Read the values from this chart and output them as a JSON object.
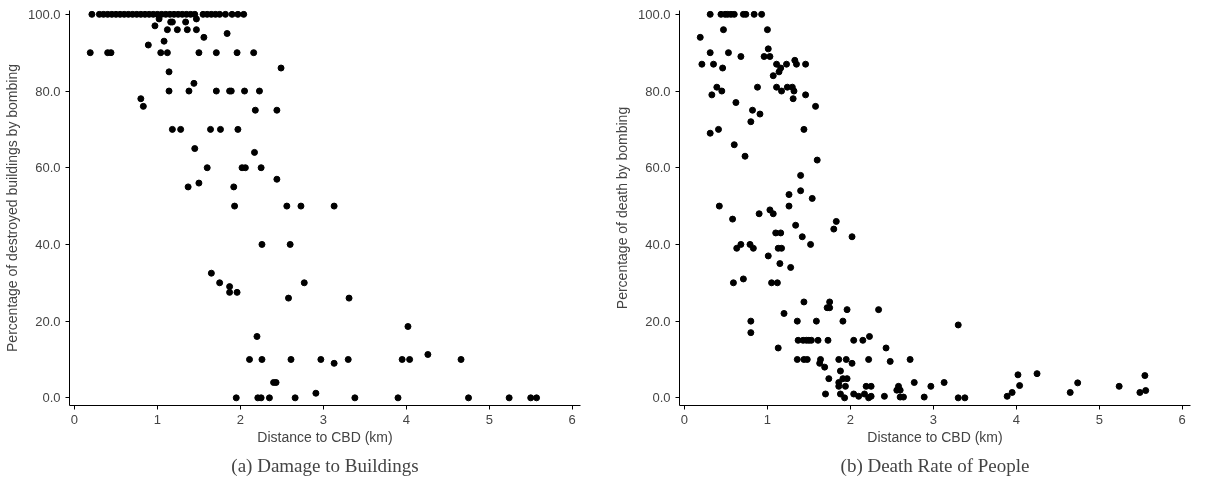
{
  "chart_data": [
    {
      "type": "scatter",
      "xlabel": "Distance to CBD (km)",
      "ylabel": "Percentage of destroyed buildings by bombing",
      "annotations": [
        "(a) Damage to Buildings"
      ],
      "marker": "circle",
      "grid": false,
      "xlim": [
        -0.06,
        6.1
      ],
      "ylim": [
        -2,
        101
      ],
      "xticks": [
        0,
        1,
        2,
        3,
        4,
        5,
        6
      ],
      "yticks": [
        {
          "value": 0,
          "label": "0.0"
        },
        {
          "value": 20,
          "label": "20.0"
        },
        {
          "value": 40,
          "label": "40.0"
        },
        {
          "value": 60,
          "label": "60.0"
        },
        {
          "value": 80,
          "label": "80.0"
        },
        {
          "value": 100,
          "label": "100.0"
        }
      ],
      "series": [
        {
          "color": "#000000",
          "x": [
            0.21,
            0.3,
            0.35,
            0.4,
            0.45,
            0.5,
            0.55,
            0.6,
            0.65,
            0.7,
            0.75,
            0.8,
            0.85,
            0.9,
            0.95,
            1.0,
            1.05,
            1.1,
            1.15,
            1.2,
            1.25,
            1.3,
            1.35,
            1.4,
            1.45,
            1.55,
            1.6,
            1.65,
            1.7,
            1.75,
            1.82,
            1.9,
            1.97,
            2.04,
            1.02,
            1.47,
            1.16,
            1.18,
            1.34,
            0.97,
            1.12,
            1.24,
            1.36,
            1.47,
            1.84,
            1.56,
            1.08,
            0.89,
            0.19,
            0.4,
            0.44,
            1.04,
            1.12,
            1.5,
            1.71,
            1.96,
            2.16,
            2.49,
            1.14,
            1.44,
            1.14,
            1.38,
            1.71,
            1.87,
            1.89,
            2.05,
            2.23,
            0.8,
            0.83,
            2.18,
            2.44,
            1.18,
            1.28,
            1.64,
            1.76,
            1.97,
            1.45,
            2.17,
            1.6,
            2.02,
            2.06,
            2.25,
            2.44,
            1.37,
            1.5,
            1.92,
            1.93,
            2.56,
            2.73,
            3.13,
            2.26,
            2.6,
            2.77,
            2.58,
            3.31,
            1.65,
            1.75,
            1.87,
            1.87,
            1.96,
            2.2,
            2.11,
            2.26,
            2.61,
            2.97,
            3.13,
            3.3,
            4.02,
            3.95,
            4.04,
            4.26,
            4.66,
            2.4,
            2.43,
            1.95,
            2.21,
            2.25,
            2.35,
            2.66,
            2.91,
            3.38,
            3.9,
            4.75,
            5.24,
            5.5,
            5.57
          ],
          "values": [
            100,
            100,
            100,
            100,
            100,
            100,
            100,
            100,
            100,
            100,
            100,
            100,
            100,
            100,
            100,
            100,
            100,
            100,
            100,
            100,
            100,
            100,
            100,
            100,
            100,
            100,
            100,
            100,
            100,
            100,
            100,
            100,
            100,
            100,
            98.8,
            98.8,
            98,
            98,
            98,
            97,
            96,
            96,
            96,
            96,
            95,
            94,
            93,
            92,
            90,
            90,
            90,
            90,
            90,
            90,
            90,
            90,
            90,
            86,
            85,
            82,
            80,
            80,
            80,
            80,
            80,
            80,
            80,
            78,
            76,
            75,
            75,
            70,
            70,
            70,
            70,
            70,
            65,
            64,
            60,
            60,
            60,
            60,
            57,
            55,
            56,
            55,
            50,
            50,
            50,
            50,
            40,
            40,
            30,
            26,
            26,
            32.5,
            30,
            29,
            27.5,
            27.5,
            16,
            10,
            10,
            10,
            10,
            9,
            10,
            18.6,
            10,
            10,
            11.3,
            10,
            4,
            4,
            0,
            0,
            0,
            0,
            0,
            1.2,
            0,
            0,
            0,
            0,
            0,
            0
          ]
        }
      ]
    },
    {
      "type": "scatter",
      "xlabel": "Distance to CBD (km)",
      "ylabel": "Percentage of death by bombing",
      "annotations": [
        "(b) Death Rate of People"
      ],
      "marker": "circle",
      "grid": false,
      "xlim": [
        -0.06,
        6.1
      ],
      "ylim": [
        -2,
        101
      ],
      "xticks": [
        0,
        1,
        2,
        3,
        4,
        5,
        6
      ],
      "yticks": [
        {
          "value": 0,
          "label": "0.0"
        },
        {
          "value": 20,
          "label": "20.0"
        },
        {
          "value": 40,
          "label": "40.0"
        },
        {
          "value": 60,
          "label": "60.0"
        },
        {
          "value": 80,
          "label": "80.0"
        },
        {
          "value": 100,
          "label": "100.0"
        }
      ],
      "series": [
        {
          "color": "#000000",
          "x": [
            0.31,
            0.44,
            0.49,
            0.52,
            0.56,
            0.6,
            0.71,
            0.74,
            0.84,
            0.93,
            0.47,
            1.0,
            0.19,
            1.01,
            0.31,
            0.53,
            0.68,
            0.96,
            1.03,
            0.21,
            0.35,
            0.46,
            1.11,
            1.23,
            1.33,
            1.35,
            1.46,
            1.16,
            1.14,
            1.07,
            0.39,
            0.45,
            0.88,
            1.11,
            1.24,
            1.3,
            1.17,
            1.32,
            0.33,
            1.46,
            1.31,
            0.62,
            1.58,
            0.82,
            0.91,
            0.8,
            0.41,
            0.31,
            1.44,
            0.6,
            0.73,
            1.6,
            1.4,
            1.4,
            1.26,
            1.54,
            0.42,
            1.26,
            0.58,
            1.03,
            1.07,
            0.9,
            1.83,
            1.8,
            1.34,
            1.1,
            1.16,
            1.42,
            2.02,
            0.63,
            0.68,
            0.79,
            0.83,
            1.13,
            1.17,
            1.52,
            1.01,
            1.15,
            1.28,
            0.59,
            0.71,
            1.05,
            1.12,
            1.44,
            1.75,
            1.72,
            1.75,
            1.96,
            2.34,
            1.2,
            0.8,
            1.36,
            1.59,
            1.91,
            0.8,
            1.37,
            1.43,
            1.47,
            1.5,
            1.53,
            1.61,
            1.73,
            2.04,
            2.15,
            2.23,
            1.13,
            2.43,
            1.36,
            1.44,
            1.48,
            1.64,
            1.86,
            1.95,
            2.22,
            2.72,
            1.63,
            2.02,
            2.48,
            1.69,
            1.88,
            1.91,
            1.96,
            1.74,
            1.86,
            2.77,
            1.86,
            1.94,
            2.19,
            2.25,
            2.58,
            2.56,
            2.6,
            1.7,
            1.88,
            2.04,
            2.17,
            1.93,
            2.1,
            2.22,
            2.25,
            2.41,
            2.6,
            2.64,
            2.89,
            3.3,
            2.97,
            3.13,
            3.3,
            3.38,
            3.89,
            3.95,
            4.02,
            4.04,
            4.25,
            4.65,
            4.74,
            5.24,
            5.49,
            5.55,
            5.56
          ],
          "values": [
            100,
            100,
            100,
            100,
            100,
            100,
            100,
            100,
            100,
            100,
            96,
            96,
            94,
            91,
            90,
            90,
            89,
            89,
            89,
            87,
            87,
            86,
            87,
            87,
            88,
            87,
            87,
            86,
            85,
            84,
            81,
            80,
            81,
            81,
            81,
            81,
            80,
            80,
            79,
            79,
            78,
            77,
            76,
            75,
            74,
            72,
            70,
            69,
            70,
            66,
            63,
            62,
            58,
            54,
            53,
            52,
            50,
            50,
            46.6,
            49,
            48,
            48,
            46,
            44,
            45,
            43,
            43,
            42,
            42,
            39,
            40,
            40,
            39,
            39,
            39,
            40,
            37,
            35,
            34,
            30,
            31,
            30,
            30,
            25,
            25,
            23.5,
            23.5,
            23,
            23,
            22,
            20,
            20,
            20,
            20,
            17,
            15,
            15,
            15,
            15,
            15,
            15,
            15,
            15,
            15,
            16,
            13,
            13,
            10,
            10,
            10,
            10,
            10,
            10,
            10,
            10,
            9,
            9,
            9.5,
            8,
            7,
            5,
            5,
            5,
            4,
            4,
            3,
            3,
            3,
            3,
            3,
            2,
            2,
            1,
            1,
            1,
            1,
            0,
            0.4,
            0,
            0.4,
            0.4,
            0.2,
            0.2,
            0.2,
            19,
            3,
            4,
            0,
            0,
            0.4,
            1.4,
            6,
            3.2,
            6.3,
            1.4,
            3.9,
            3,
            1.4,
            5.8,
            1.9
          ]
        }
      ]
    }
  ]
}
